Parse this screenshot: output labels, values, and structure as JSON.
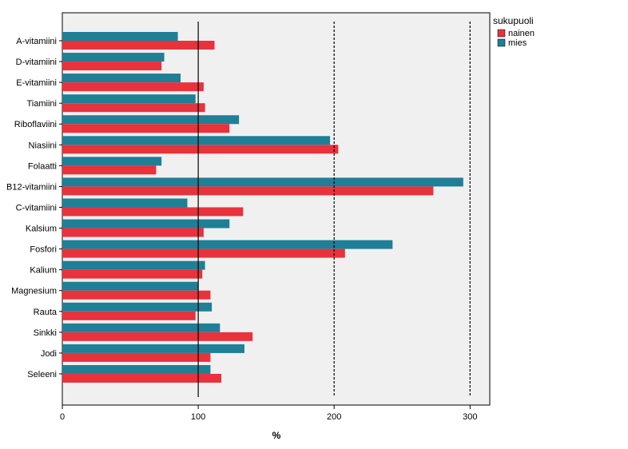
{
  "chart_data": {
    "type": "bar",
    "orientation": "horizontal",
    "categories": [
      "A-vitamiini",
      "D-vitamiini",
      "E-vitamiini",
      "Tiamiini",
      "Riboflaviini",
      "Niasiini",
      "Folaatti",
      "B12-vitamiini",
      "C-vitamiini",
      "Kalsium",
      "Fosfori",
      "Kalium",
      "Magnesium",
      "Rauta",
      "Sinkki",
      "Jodi",
      "Seleeni"
    ],
    "series": [
      {
        "name": "mies",
        "color": "#1f7f96",
        "values": [
          85,
          75,
          87,
          98,
          130,
          197,
          73,
          295,
          92,
          123,
          243,
          105,
          100,
          110,
          116,
          134,
          109
        ]
      },
      {
        "name": "nainen",
        "color": "#e8323c",
        "values": [
          112,
          73,
          104,
          105,
          123,
          203,
          69,
          273,
          133,
          104,
          208,
          103,
          109,
          98,
          140,
          109,
          117
        ]
      }
    ],
    "xlabel": "%",
    "ylabel": "",
    "xlim": [
      0,
      315
    ],
    "xticks": [
      0,
      100,
      200,
      300
    ],
    "reference_lines": [
      {
        "value": 100,
        "style": "solid"
      },
      {
        "value": 200,
        "style": "dashed"
      },
      {
        "value": 300,
        "style": "dashed"
      }
    ],
    "legend": {
      "title": "sukupuoli",
      "placement": "top-right",
      "entries": [
        "nainen",
        "mies"
      ]
    },
    "background": "#f0f0f0",
    "grid": false
  }
}
